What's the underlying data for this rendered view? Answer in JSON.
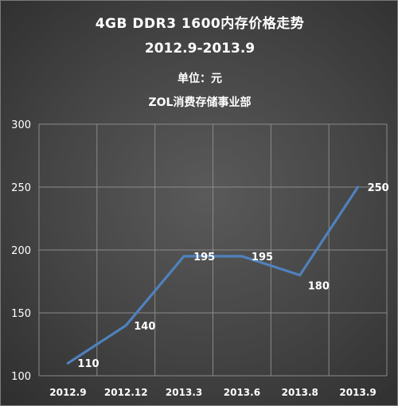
{
  "titles": {
    "line1": "4GB  DDR3  1600内存价格走势",
    "line2": "2012.9-2013.9",
    "line3": "单位：元",
    "line4": "ZOL消费存储事业部"
  },
  "chart_data": {
    "type": "line",
    "title": "4GB  DDR3  1600内存价格走势",
    "subtitle": "2012.9-2013.9",
    "unit": "单位：元",
    "source": "ZOL消费存储事业部",
    "categories": [
      "2012.9",
      "2012.12",
      "2013.3",
      "2013.6",
      "2013.8",
      "2013.9"
    ],
    "series": [
      {
        "values": [
          110,
          140,
          195,
          195,
          180,
          250
        ]
      }
    ],
    "ylim": [
      100,
      300
    ],
    "yticks": [
      100,
      150,
      200,
      250,
      300
    ],
    "grid": true,
    "legend": "none",
    "colors": {
      "line": "#4f81bd",
      "grid": "#8a8a8a",
      "text": "#ffffff"
    }
  }
}
